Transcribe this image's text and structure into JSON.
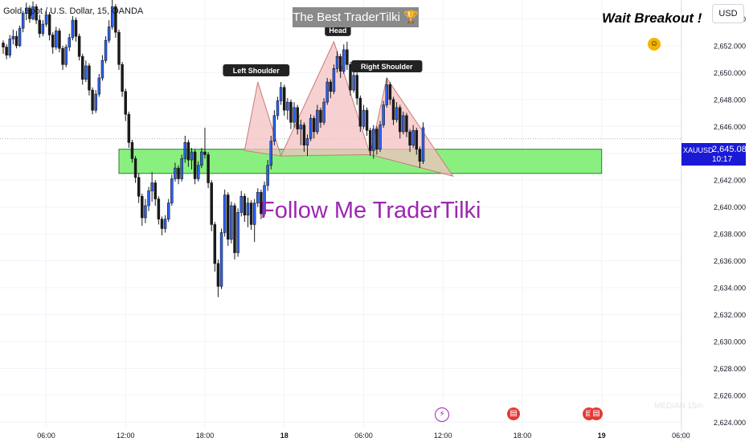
{
  "header": {
    "symbol_title": "Gold Spot / U.S. Dollar, 15, OANDA",
    "promo_banner": "The Best TraderTilki 🏆",
    "wait_note": "Wait Breakout !",
    "currency_button": "USD"
  },
  "overlay": {
    "follow_text": "Follow Me TraderTilki",
    "pattern_labels": [
      "Left Shoulder",
      "Head",
      "Right Shoulder"
    ],
    "watermark": "MEDIAN 15m",
    "event_icons": [
      "lightning-icon",
      "us-flag-icon",
      "us-flag-icon",
      "us-flag-icon"
    ]
  },
  "price_tag": {
    "symbol": "XAUUSD",
    "price": "2,645.080",
    "countdown": "10:17"
  },
  "colors": {
    "bull": "#2962ff",
    "bear": "#1a1a1a",
    "zone_fill": "#89f080",
    "zone_border": "#2e7d32",
    "triangle_fill": "#f4c2c2",
    "triangle_line": "#c77a7a",
    "label_bg": "#222222",
    "follow_text": "#9c27b0",
    "price_tag": "#1a1ad6"
  },
  "chart_data": {
    "type": "candlestick",
    "title": "Gold Spot / U.S. Dollar, 15, OANDA",
    "y_axis": {
      "range": [
        2623.6,
        2655.4
      ],
      "tick_labels": [
        "2,654.000",
        "2,652.000",
        "2,650.000",
        "2,648.000",
        "2,646.000",
        "2,644.000",
        "2,642.000",
        "2,640.000",
        "2,638.000",
        "2,636.000",
        "2,634.000",
        "2,632.000",
        "2,630.000",
        "2,628.000",
        "2,626.000",
        "2,624.000"
      ],
      "ticks": [
        2654,
        2652,
        2650,
        2648,
        2646,
        2644,
        2642,
        2640,
        2638,
        2636,
        2634,
        2632,
        2630,
        2628,
        2626,
        2624
      ]
    },
    "x_axis": {
      "tick_labels": [
        "06:00",
        "12:00",
        "18:00",
        "18",
        "06:00",
        "12:00",
        "18:00",
        "19",
        "06:00"
      ],
      "tick_bars": [
        13,
        37,
        61,
        85,
        109,
        133,
        157,
        181,
        205
      ],
      "bar_range": [
        0,
        210
      ]
    },
    "current_price": 2645.08,
    "support_zone": {
      "low": 2642.5,
      "high": 2644.3,
      "bar_from": 35,
      "bar_to": 181
    },
    "head_and_shoulders": [
      {
        "name": "Left Shoulder",
        "points": [
          [
            73,
            2644.2
          ],
          [
            77,
            2649.3
          ],
          [
            84,
            2643.8
          ]
        ]
      },
      {
        "name": "Head",
        "points": [
          [
            84,
            2643.8
          ],
          [
            100,
            2652.3
          ],
          [
            111,
            2643.9
          ]
        ]
      },
      {
        "name": "Right Shoulder",
        "points": [
          [
            111,
            2643.9
          ],
          [
            116,
            2649.6
          ],
          [
            136,
            2642.3
          ]
        ]
      }
    ],
    "candles": [
      [
        2652.2,
        2652.4,
        2651.4,
        2651.9
      ],
      [
        2651.9,
        2652.1,
        2651.0,
        2651.3
      ],
      [
        2651.3,
        2652.8,
        2651.1,
        2652.5
      ],
      [
        2652.5,
        2653.2,
        2652.1,
        2652.7
      ],
      [
        2652.7,
        2653.1,
        2651.8,
        2652.0
      ],
      [
        2652.0,
        2653.5,
        2651.9,
        2653.3
      ],
      [
        2653.3,
        2654.6,
        2653.0,
        2654.4
      ],
      [
        2654.4,
        2655.2,
        2653.9,
        2654.8
      ],
      [
        2654.8,
        2655.0,
        2653.7,
        2654.0
      ],
      [
        2654.0,
        2655.3,
        2653.9,
        2654.9
      ],
      [
        2654.9,
        2655.1,
        2653.6,
        2653.9
      ],
      [
        2653.9,
        2654.3,
        2652.6,
        2652.9
      ],
      [
        2652.9,
        2653.9,
        2652.7,
        2653.6
      ],
      [
        2653.6,
        2654.6,
        2653.4,
        2654.3
      ],
      [
        2654.3,
        2654.5,
        2652.4,
        2652.8
      ],
      [
        2652.8,
        2653.0,
        2651.4,
        2651.9
      ],
      [
        2651.9,
        2653.4,
        2651.7,
        2653.1
      ],
      [
        2653.1,
        2653.3,
        2651.5,
        2651.8
      ],
      [
        2651.8,
        2652.0,
        2650.2,
        2650.6
      ],
      [
        2650.6,
        2652.1,
        2650.4,
        2651.9
      ],
      [
        2651.9,
        2652.9,
        2651.6,
        2652.6
      ],
      [
        2652.6,
        2654.2,
        2652.4,
        2653.9
      ],
      [
        2653.9,
        2654.1,
        2652.3,
        2652.7
      ],
      [
        2652.7,
        2652.9,
        2650.9,
        2651.2
      ],
      [
        2651.2,
        2651.4,
        2649.1,
        2649.5
      ],
      [
        2649.5,
        2650.9,
        2649.3,
        2650.5
      ],
      [
        2650.5,
        2650.7,
        2648.3,
        2648.7
      ],
      [
        2648.7,
        2648.9,
        2646.9,
        2647.2
      ],
      [
        2647.2,
        2648.7,
        2647.0,
        2648.4
      ],
      [
        2648.4,
        2649.9,
        2648.2,
        2649.6
      ],
      [
        2649.6,
        2651.3,
        2649.4,
        2650.9
      ],
      [
        2650.9,
        2652.7,
        2650.7,
        2652.4
      ],
      [
        2652.4,
        2653.9,
        2652.2,
        2653.4
      ],
      [
        2653.4,
        2655.4,
        2653.2,
        2654.9
      ],
      [
        2654.9,
        2655.1,
        2652.6,
        2653.0
      ],
      [
        2653.0,
        2653.2,
        2650.2,
        2650.6
      ],
      [
        2650.6,
        2650.8,
        2648.2,
        2648.6
      ],
      [
        2648.6,
        2648.8,
        2646.4,
        2646.9
      ],
      [
        2646.9,
        2647.1,
        2644.4,
        2644.8
      ],
      [
        2644.8,
        2645.0,
        2643.3,
        2643.6
      ],
      [
        2643.6,
        2643.8,
        2641.8,
        2642.2
      ],
      [
        2642.2,
        2642.5,
        2640.3,
        2640.8
      ],
      [
        2640.8,
        2641.0,
        2638.6,
        2639.2
      ],
      [
        2639.2,
        2640.6,
        2638.8,
        2640.1
      ],
      [
        2640.1,
        2641.5,
        2639.7,
        2641.2
      ],
      [
        2641.2,
        2642.6,
        2640.4,
        2641.8
      ],
      [
        2641.8,
        2642.0,
        2640.1,
        2640.6
      ],
      [
        2640.6,
        2640.8,
        2638.7,
        2639.1
      ],
      [
        2639.1,
        2639.3,
        2637.9,
        2638.4
      ],
      [
        2638.4,
        2639.4,
        2638.1,
        2639.1
      ],
      [
        2639.1,
        2640.6,
        2638.9,
        2640.3
      ],
      [
        2640.3,
        2642.4,
        2640.1,
        2642.1
      ],
      [
        2642.1,
        2643.3,
        2641.9,
        2642.9
      ],
      [
        2642.9,
        2643.1,
        2641.7,
        2642.1
      ],
      [
        2642.1,
        2643.9,
        2641.9,
        2643.6
      ],
      [
        2643.6,
        2645.3,
        2643.3,
        2644.8
      ],
      [
        2644.8,
        2645.0,
        2643.0,
        2643.5
      ],
      [
        2643.5,
        2644.4,
        2642.8,
        2644.1
      ],
      [
        2644.1,
        2644.3,
        2641.7,
        2642.1
      ],
      [
        2642.1,
        2643.4,
        2641.9,
        2643.1
      ],
      [
        2643.1,
        2644.4,
        2642.9,
        2644.1
      ],
      [
        2644.1,
        2645.9,
        2643.6,
        2643.9
      ],
      [
        2643.9,
        2644.1,
        2641.4,
        2641.8
      ],
      [
        2641.8,
        2642.0,
        2638.2,
        2638.7
      ],
      [
        2638.7,
        2638.9,
        2635.2,
        2635.8
      ],
      [
        2635.8,
        2636.1,
        2633.3,
        2634.1
      ],
      [
        2634.1,
        2638.4,
        2633.9,
        2638.1
      ],
      [
        2638.1,
        2641.3,
        2637.8,
        2640.9
      ],
      [
        2640.9,
        2641.1,
        2637.1,
        2637.6
      ],
      [
        2637.6,
        2640.4,
        2637.3,
        2640.1
      ],
      [
        2640.1,
        2640.3,
        2636.1,
        2636.6
      ],
      [
        2636.6,
        2639.9,
        2636.3,
        2639.6
      ],
      [
        2639.6,
        2641.2,
        2639.3,
        2640.8
      ],
      [
        2640.8,
        2641.0,
        2638.9,
        2639.4
      ],
      [
        2639.4,
        2640.7,
        2638.5,
        2640.3
      ],
      [
        2640.3,
        2640.5,
        2638.3,
        2638.7
      ],
      [
        2638.7,
        2640.6,
        2637.4,
        2640.3
      ],
      [
        2640.3,
        2641.4,
        2640.0,
        2641.1
      ],
      [
        2641.1,
        2641.3,
        2639.1,
        2639.5
      ],
      [
        2639.5,
        2641.9,
        2639.3,
        2641.6
      ],
      [
        2641.6,
        2643.5,
        2641.2,
        2643.1
      ],
      [
        2643.1,
        2645.3,
        2642.8,
        2644.9
      ],
      [
        2644.9,
        2647.2,
        2644.6,
        2646.8
      ],
      [
        2646.8,
        2648.2,
        2646.5,
        2647.9
      ],
      [
        2647.9,
        2649.3,
        2647.6,
        2648.9
      ],
      [
        2648.9,
        2649.1,
        2646.8,
        2647.2
      ],
      [
        2647.2,
        2648.1,
        2646.5,
        2647.8
      ],
      [
        2647.8,
        2648.0,
        2645.8,
        2646.3
      ],
      [
        2646.3,
        2647.8,
        2645.9,
        2647.4
      ],
      [
        2647.4,
        2647.6,
        2645.4,
        2645.8
      ],
      [
        2645.8,
        2646.5,
        2644.6,
        2646.1
      ],
      [
        2646.1,
        2646.3,
        2644.1,
        2644.6
      ],
      [
        2644.6,
        2645.4,
        2643.8,
        2645.1
      ],
      [
        2645.1,
        2646.9,
        2644.9,
        2646.6
      ],
      [
        2646.6,
        2646.8,
        2645.1,
        2645.6
      ],
      [
        2645.6,
        2647.6,
        2645.4,
        2647.2
      ],
      [
        2647.2,
        2647.4,
        2645.9,
        2646.3
      ],
      [
        2646.3,
        2648.1,
        2646.1,
        2647.8
      ],
      [
        2647.8,
        2649.6,
        2647.6,
        2649.3
      ],
      [
        2649.3,
        2649.5,
        2648.1,
        2648.6
      ],
      [
        2648.6,
        2650.6,
        2648.4,
        2650.3
      ],
      [
        2650.3,
        2651.6,
        2650.0,
        2651.2
      ],
      [
        2651.2,
        2651.4,
        2649.6,
        2650.1
      ],
      [
        2650.1,
        2652.1,
        2649.9,
        2651.7
      ],
      [
        2651.7,
        2652.3,
        2650.2,
        2650.6
      ],
      [
        2650.6,
        2650.8,
        2648.3,
        2648.7
      ],
      [
        2648.7,
        2650.2,
        2648.5,
        2649.8
      ],
      [
        2649.8,
        2650.0,
        2647.6,
        2648.1
      ],
      [
        2648.1,
        2648.3,
        2645.6,
        2646.0
      ],
      [
        2646.0,
        2647.6,
        2645.8,
        2647.2
      ],
      [
        2647.2,
        2647.4,
        2645.3,
        2645.7
      ],
      [
        2645.7,
        2645.9,
        2643.8,
        2644.2
      ],
      [
        2644.2,
        2646.1,
        2643.6,
        2645.8
      ],
      [
        2645.8,
        2646.0,
        2643.9,
        2644.3
      ],
      [
        2644.3,
        2646.4,
        2644.1,
        2646.1
      ],
      [
        2646.1,
        2647.9,
        2645.9,
        2647.6
      ],
      [
        2647.6,
        2649.6,
        2647.4,
        2649.1
      ],
      [
        2649.1,
        2649.3,
        2647.6,
        2648.0
      ],
      [
        2648.0,
        2648.2,
        2646.1,
        2646.5
      ],
      [
        2646.5,
        2647.8,
        2646.3,
        2647.4
      ],
      [
        2647.4,
        2647.6,
        2645.1,
        2645.6
      ],
      [
        2645.6,
        2647.1,
        2645.4,
        2646.8
      ],
      [
        2646.8,
        2647.0,
        2645.2,
        2645.6
      ],
      [
        2645.6,
        2645.8,
        2644.1,
        2644.6
      ],
      [
        2644.6,
        2646.1,
        2644.4,
        2645.7
      ],
      [
        2645.7,
        2645.9,
        2643.9,
        2644.3
      ],
      [
        2644.3,
        2644.5,
        2642.9,
        2643.4
      ],
      [
        2643.4,
        2646.3,
        2643.2,
        2645.9
      ]
    ]
  }
}
